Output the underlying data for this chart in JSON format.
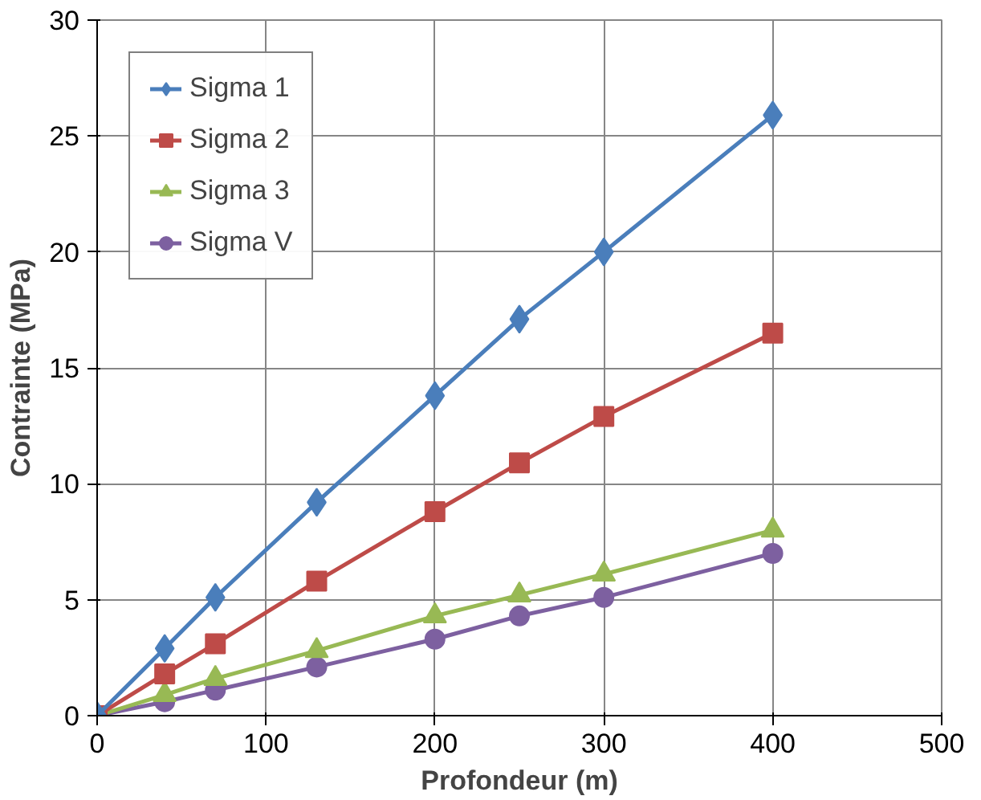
{
  "chart_data": {
    "type": "line",
    "xlabel": "Profondeur (m)",
    "ylabel": "Contrainte (MPa)",
    "x": [
      0,
      40,
      70,
      130,
      200,
      250,
      300,
      400
    ],
    "series": [
      {
        "name": "Sigma 1",
        "color": "#4a7ebb",
        "marker": "diamond",
        "values": [
          0,
          2.9,
          5.1,
          9.2,
          13.8,
          17.1,
          20.0,
          25.9
        ]
      },
      {
        "name": "Sigma 2",
        "color": "#be4b48",
        "marker": "square",
        "values": [
          0,
          1.8,
          3.1,
          5.8,
          8.8,
          10.9,
          12.9,
          16.5
        ]
      },
      {
        "name": "Sigma 3",
        "color": "#98b954",
        "marker": "triangle",
        "values": [
          0,
          0.9,
          1.6,
          2.8,
          4.3,
          5.2,
          6.1,
          8.0
        ]
      },
      {
        "name": "Sigma V",
        "color": "#7d60a0",
        "marker": "circle",
        "values": [
          0,
          0.6,
          1.1,
          2.1,
          3.3,
          4.3,
          5.1,
          7.0
        ]
      }
    ],
    "xlim": [
      0,
      500
    ],
    "xticks": [
      0,
      100,
      200,
      300,
      400,
      500
    ],
    "ylim": [
      0,
      30
    ],
    "yticks": [
      0,
      5,
      10,
      15,
      20,
      25,
      30
    ],
    "grid": true,
    "legend": "top left",
    "line_style": "solid"
  }
}
